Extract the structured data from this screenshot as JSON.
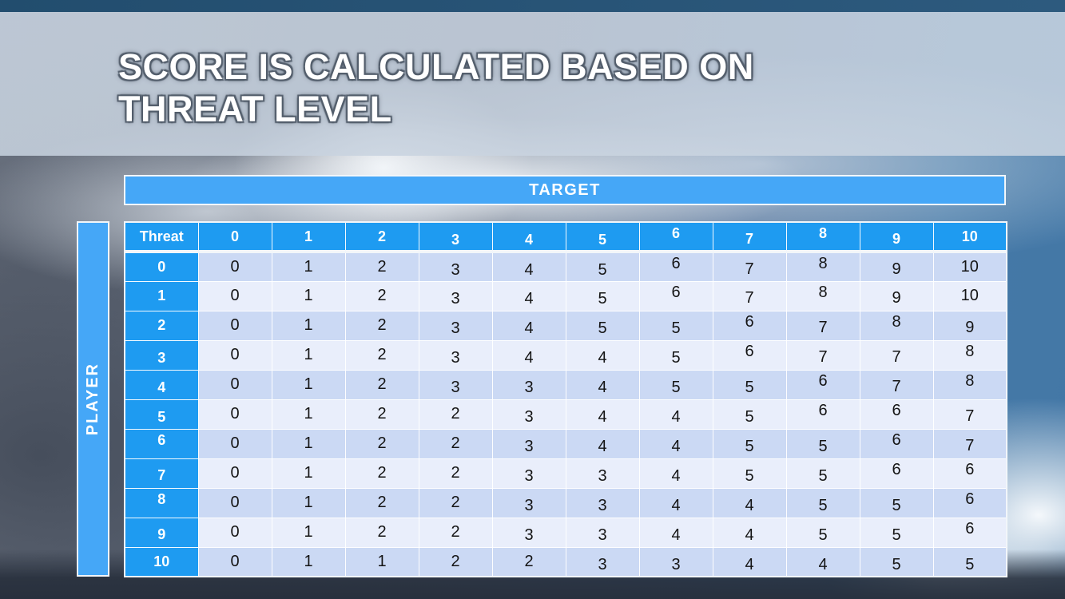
{
  "slide": {
    "title_line1": "SCORE IS CALCULATED BASED ON",
    "title_line2": "THREAT LEVEL"
  },
  "table": {
    "target_label": "TARGET",
    "player_label": "PLAYER",
    "corner_label": "Threat",
    "column_headers": [
      "0",
      "1",
      "2",
      "3",
      "4",
      "5",
      "6",
      "7",
      "8",
      "9",
      "10"
    ],
    "row_headers": [
      "0",
      "1",
      "2",
      "3",
      "4",
      "5",
      "6",
      "7",
      "8",
      "9",
      "10"
    ],
    "rows": [
      [
        0,
        1,
        2,
        3,
        4,
        5,
        6,
        7,
        8,
        9,
        10
      ],
      [
        0,
        1,
        2,
        3,
        4,
        5,
        6,
        7,
        8,
        9,
        10
      ],
      [
        0,
        1,
        2,
        3,
        4,
        5,
        5,
        6,
        7,
        8,
        9
      ],
      [
        0,
        1,
        2,
        3,
        4,
        4,
        5,
        6,
        7,
        7,
        8
      ],
      [
        0,
        1,
        2,
        3,
        3,
        4,
        5,
        5,
        6,
        7,
        8
      ],
      [
        0,
        1,
        2,
        2,
        3,
        4,
        4,
        5,
        6,
        6,
        7
      ],
      [
        0,
        1,
        2,
        2,
        3,
        4,
        4,
        5,
        5,
        6,
        7
      ],
      [
        0,
        1,
        2,
        2,
        3,
        3,
        4,
        5,
        5,
        6,
        6
      ],
      [
        0,
        1,
        2,
        2,
        3,
        3,
        4,
        4,
        5,
        5,
        6
      ],
      [
        0,
        1,
        2,
        2,
        3,
        3,
        4,
        4,
        5,
        5,
        6
      ],
      [
        0,
        1,
        1,
        2,
        2,
        3,
        3,
        4,
        4,
        5,
        5
      ]
    ]
  },
  "colors": {
    "header_blue": "#1E9BF1",
    "bar_blue": "#45A7F7",
    "row_dark": "#CBD9F4",
    "row_light": "#E9EEFB",
    "cell_text": "#141414"
  }
}
